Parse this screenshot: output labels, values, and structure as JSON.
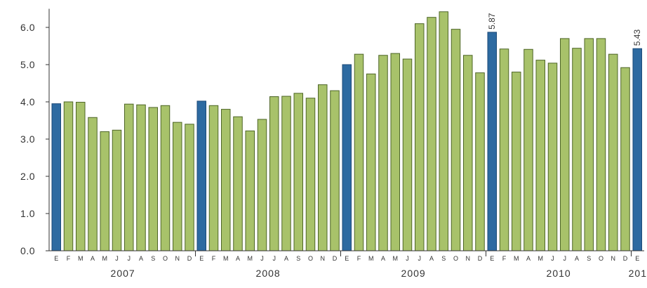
{
  "chart_data": {
    "type": "bar",
    "title": "",
    "xlabel": "",
    "ylabel": "",
    "ylim": [
      0,
      6.5
    ],
    "y_ticks": [
      "0.0",
      "1.0",
      "2.0",
      "3.0",
      "4.0",
      "5.0",
      "6.0"
    ],
    "y_tick_values": [
      0,
      1,
      2,
      3,
      4,
      5,
      6
    ],
    "grid": false,
    "legend": "none",
    "month_letters": [
      "E",
      "F",
      "M",
      "A",
      "M",
      "J",
      "J",
      "A",
      "S",
      "O",
      "N",
      "D"
    ],
    "years": [
      {
        "label": "2007",
        "values": [
          3.95,
          4.0,
          3.99,
          3.58,
          3.2,
          3.24,
          3.94,
          3.92,
          3.85,
          3.9,
          3.45,
          3.4
        ]
      },
      {
        "label": "2008",
        "values": [
          4.02,
          3.9,
          3.8,
          3.6,
          3.22,
          3.53,
          4.14,
          4.15,
          4.23,
          4.1,
          4.46,
          4.3
        ]
      },
      {
        "label": "2009",
        "values": [
          5.0,
          5.28,
          4.75,
          5.25,
          5.3,
          5.15,
          6.1,
          6.27,
          6.42,
          5.95,
          5.25,
          4.78
        ]
      },
      {
        "label": "2010",
        "values": [
          5.87,
          5.42,
          4.8,
          5.41,
          5.12,
          5.04,
          5.7,
          5.44,
          5.7,
          5.7,
          5.28,
          4.92
        ]
      },
      {
        "label": "201",
        "values": [
          5.43
        ]
      }
    ],
    "data_labels": [
      {
        "year_index": 3,
        "month_index": 0,
        "text": "5.87"
      },
      {
        "year_index": 4,
        "month_index": 0,
        "text": "5.43"
      }
    ],
    "colors": {
      "january_bar": "#2d6aa1",
      "january_bar_stroke": "#1c4a78",
      "month_bar": "#a8c26a",
      "month_bar_stroke": "#4d6526",
      "axis": "#333333",
      "text": "#333333"
    }
  }
}
